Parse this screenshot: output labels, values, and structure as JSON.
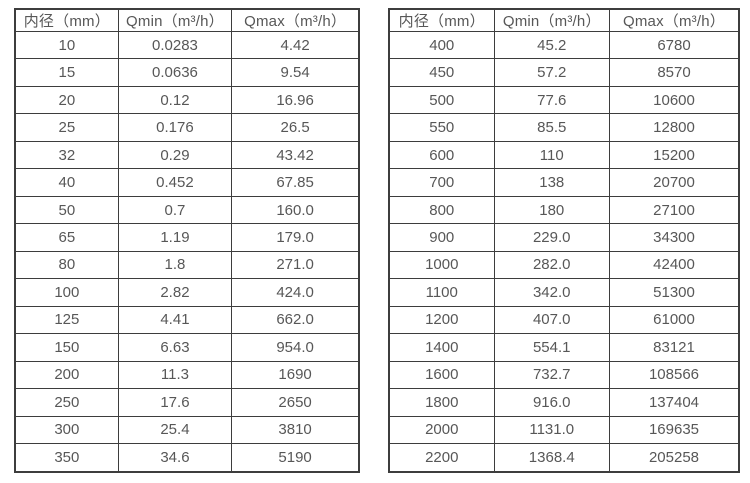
{
  "colors": {
    "background": "#ffffff",
    "border": "#3d3d3d",
    "text": "#575757"
  },
  "tables": [
    {
      "name": "flow-table-small-diameters",
      "headers": [
        "内径（mm）",
        "Qmin（m³/h）",
        "Qmax（m³/h）"
      ],
      "rows": [
        [
          "10",
          "0.0283",
          "4.42"
        ],
        [
          "15",
          "0.0636",
          "9.54"
        ],
        [
          "20",
          "0.12",
          "16.96"
        ],
        [
          "25",
          "0.176",
          "26.5"
        ],
        [
          "32",
          "0.29",
          "43.42"
        ],
        [
          "40",
          "0.452",
          "67.85"
        ],
        [
          "50",
          "0.7",
          "160.0"
        ],
        [
          "65",
          "1.19",
          "179.0"
        ],
        [
          "80",
          "1.8",
          "271.0"
        ],
        [
          "100",
          "2.82",
          "424.0"
        ],
        [
          "125",
          "4.41",
          "662.0"
        ],
        [
          "150",
          "6.63",
          "954.0"
        ],
        [
          "200",
          "11.3",
          "1690"
        ],
        [
          "250",
          "17.6",
          "2650"
        ],
        [
          "300",
          "25.4",
          "3810"
        ],
        [
          "350",
          "34.6",
          "5190"
        ]
      ]
    },
    {
      "name": "flow-table-large-diameters",
      "headers": [
        "内径（mm）",
        "Qmin（m³/h）",
        "Qmax（m³/h）"
      ],
      "rows": [
        [
          "400",
          "45.2",
          "6780"
        ],
        [
          "450",
          "57.2",
          "8570"
        ],
        [
          "500",
          "77.6",
          "10600"
        ],
        [
          "550",
          "85.5",
          "12800"
        ],
        [
          "600",
          "110",
          "15200"
        ],
        [
          "700",
          "138",
          "20700"
        ],
        [
          "800",
          "180",
          "27100"
        ],
        [
          "900",
          "229.0",
          "34300"
        ],
        [
          "1000",
          "282.0",
          "42400"
        ],
        [
          "1100",
          "342.0",
          "51300"
        ],
        [
          "1200",
          "407.0",
          "61000"
        ],
        [
          "1400",
          "554.1",
          "83121"
        ],
        [
          "1600",
          "732.7",
          "108566"
        ],
        [
          "1800",
          "916.0",
          "137404"
        ],
        [
          "2000",
          "1131.0",
          "169635"
        ],
        [
          "2200",
          "1368.4",
          "205258"
        ]
      ]
    }
  ]
}
